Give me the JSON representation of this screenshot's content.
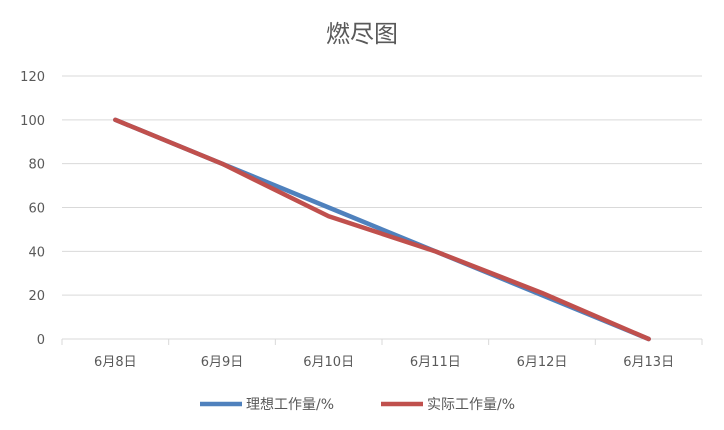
{
  "chart_data": {
    "type": "line",
    "title": "燃尽图",
    "xlabel": "",
    "ylabel": "",
    "categories": [
      "6月8日",
      "6月9日",
      "6月10日",
      "6月11日",
      "6月12日",
      "6月13日"
    ],
    "ylim": [
      0,
      120
    ],
    "yticks": [
      0,
      20,
      40,
      60,
      80,
      100,
      120
    ],
    "grid": true,
    "legend": "bottom",
    "series": [
      {
        "name": "理想工作量/%",
        "color": "#4F81BD",
        "values": [
          100,
          80,
          60,
          40,
          20,
          0
        ]
      },
      {
        "name": "实际工作量/%",
        "color": "#C0504D",
        "values": [
          100,
          80,
          56,
          40,
          21,
          0
        ]
      }
    ]
  }
}
